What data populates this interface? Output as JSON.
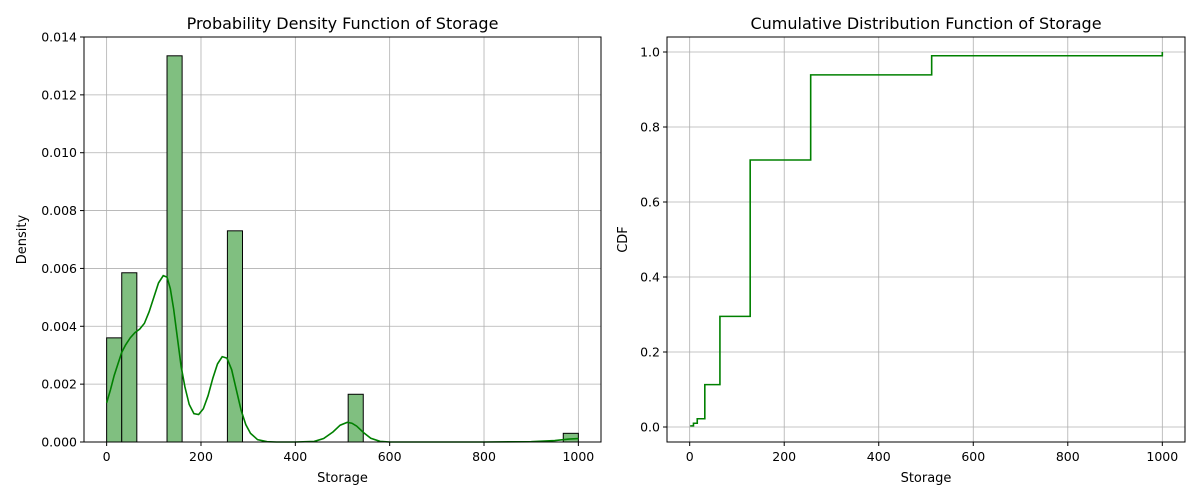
{
  "chart_data": [
    {
      "type": "bar",
      "title": "Probability Density Function of Storage",
      "xlabel": "Storage",
      "ylabel": "Density",
      "xlim": [
        -48,
        1048
      ],
      "ylim": [
        0,
        0.014
      ],
      "xticks": [
        0,
        200,
        400,
        600,
        800,
        1000
      ],
      "yticks": [
        0.0,
        0.002,
        0.004,
        0.006,
        0.008,
        0.01,
        0.012,
        0.014
      ],
      "ytick_labels": [
        "0.000",
        "0.002",
        "0.004",
        "0.006",
        "0.008",
        "0.010",
        "0.012",
        "0.014"
      ],
      "grid": true,
      "color": "#008000",
      "bar_fill": "#80bf80",
      "bins": [
        {
          "x0": 0,
          "x1": 32,
          "density": 0.0036
        },
        {
          "x0": 32,
          "x1": 64,
          "density": 0.00585
        },
        {
          "x0": 128,
          "x1": 160,
          "density": 0.01335
        },
        {
          "x0": 256,
          "x1": 288,
          "density": 0.0073
        },
        {
          "x0": 512,
          "x1": 544,
          "density": 0.00165
        },
        {
          "x0": 968,
          "x1": 1000,
          "density": 0.0003
        }
      ],
      "kde": {
        "x": [
          0,
          8,
          16,
          24,
          32,
          40,
          50,
          60,
          70,
          80,
          90,
          100,
          110,
          120,
          128,
          135,
          142,
          150,
          158,
          166,
          175,
          185,
          195,
          205,
          215,
          225,
          235,
          245,
          255,
          265,
          275,
          285,
          295,
          305,
          320,
          340,
          360,
          400,
          440,
          460,
          480,
          495,
          510,
          520,
          530,
          545,
          560,
          580,
          600,
          700,
          800,
          900,
          950,
          980,
          1000
        ],
        "y": [
          0.00135,
          0.0018,
          0.0023,
          0.0027,
          0.0031,
          0.00335,
          0.0036,
          0.00378,
          0.0039,
          0.0041,
          0.0045,
          0.005,
          0.0055,
          0.00575,
          0.0057,
          0.0053,
          0.0046,
          0.0036,
          0.0026,
          0.0019,
          0.0013,
          0.00098,
          0.00095,
          0.00115,
          0.0016,
          0.0022,
          0.0027,
          0.00295,
          0.0029,
          0.0025,
          0.0018,
          0.0011,
          0.0006,
          0.0003,
          8e-05,
          1e-05,
          0.0,
          0.0,
          2e-05,
          0.00012,
          0.00035,
          0.00058,
          0.00068,
          0.00065,
          0.00055,
          0.00032,
          0.00013,
          2e-05,
          0.0,
          0.0,
          0.0,
          1e-05,
          5e-05,
          0.0001,
          0.00012
        ]
      }
    },
    {
      "type": "line",
      "title": "Cumulative Distribution Function of Storage",
      "xlabel": "Storage",
      "ylabel": "CDF",
      "xlim": [
        -48,
        1048
      ],
      "ylim": [
        -0.04,
        1.04
      ],
      "xticks": [
        0,
        200,
        400,
        600,
        800,
        1000
      ],
      "yticks": [
        0.0,
        0.2,
        0.4,
        0.6,
        0.8,
        1.0
      ],
      "ytick_labels": [
        "0.0",
        "0.2",
        "0.4",
        "0.6",
        "0.8",
        "1.0"
      ],
      "grid": true,
      "color": "#008000",
      "step": {
        "x": [
          1,
          8,
          16,
          32,
          64,
          128,
          256,
          512,
          1000
        ],
        "y": [
          0.003,
          0.01,
          0.022,
          0.113,
          0.295,
          0.712,
          0.939,
          0.99,
          1.0
        ]
      }
    }
  ]
}
